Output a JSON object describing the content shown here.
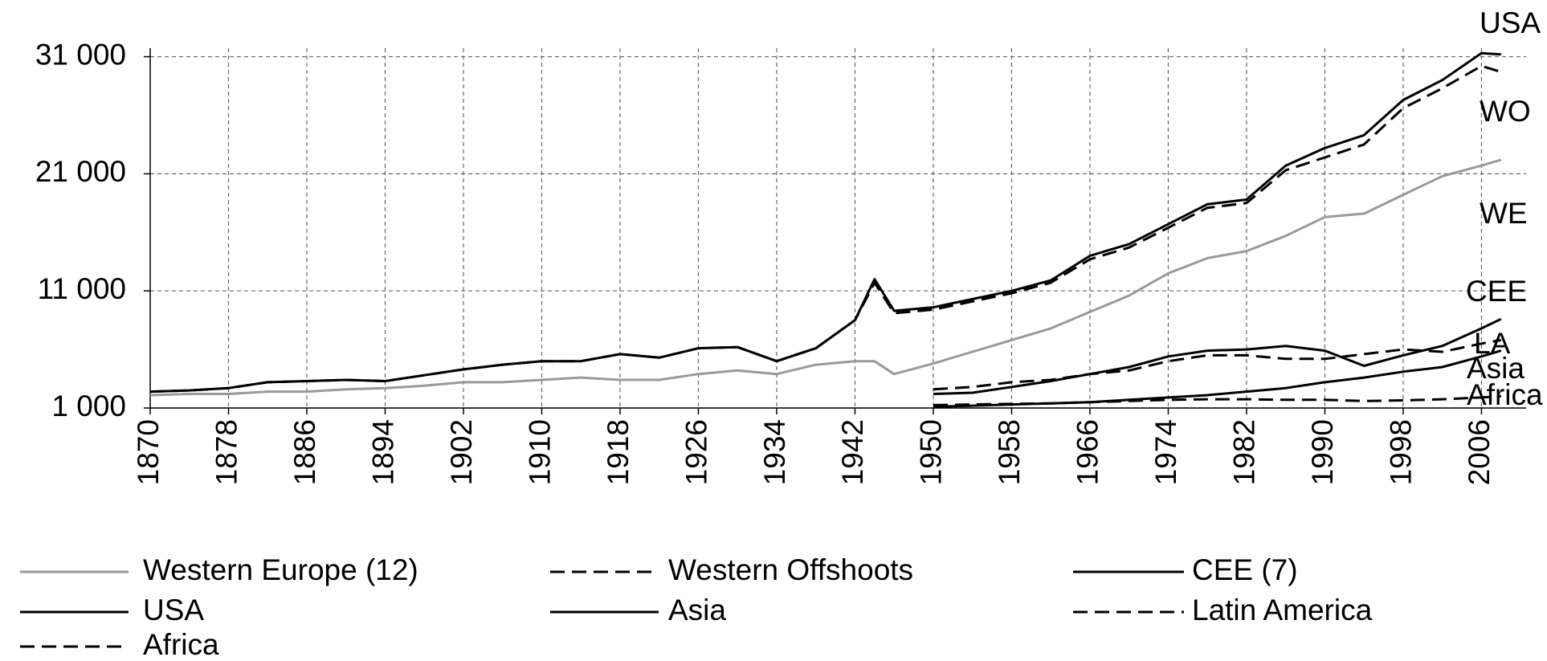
{
  "chart_data": {
    "type": "line",
    "x": [
      1870,
      1874,
      1878,
      1882,
      1886,
      1890,
      1894,
      1898,
      1902,
      1906,
      1910,
      1914,
      1918,
      1922,
      1926,
      1930,
      1934,
      1938,
      1942,
      1944,
      1946,
      1950,
      1954,
      1958,
      1962,
      1966,
      1970,
      1974,
      1978,
      1982,
      1986,
      1990,
      1994,
      1998,
      2002,
      2006,
      2008
    ],
    "series": [
      {
        "name": "Western Europe (12)",
        "color": "#999999",
        "dash": false,
        "values": [
          2100,
          2200,
          2200,
          2400,
          2400,
          2600,
          2700,
          2900,
          3200,
          3200,
          3400,
          3600,
          3400,
          3400,
          3900,
          4200,
          3900,
          4700,
          5000,
          5000,
          3900,
          4800,
          5800,
          6800,
          7800,
          9200,
          10600,
          12500,
          13800,
          14400,
          15700,
          17300,
          17600,
          19200,
          20800,
          21700,
          22200
        ]
      },
      {
        "name": "Western Offshoots",
        "color": "#000000",
        "dash": true,
        "values": [
          2400,
          2500,
          2700,
          3200,
          3300,
          3400,
          3300,
          3800,
          4300,
          4700,
          5000,
          5000,
          5600,
          5300,
          6100,
          6200,
          5000,
          6100,
          8500,
          11700,
          9100,
          9400,
          10100,
          10800,
          11700,
          13700,
          14700,
          16400,
          18100,
          18500,
          21300,
          22400,
          23500,
          26600,
          28300,
          30200,
          29700
        ]
      },
      {
        "name": "CEE (7)",
        "color": "#000000",
        "dash": false,
        "values": [
          null,
          null,
          null,
          null,
          null,
          null,
          null,
          null,
          null,
          null,
          null,
          null,
          null,
          null,
          null,
          null,
          null,
          null,
          null,
          null,
          null,
          2200,
          2300,
          2800,
          3300,
          3900,
          4500,
          5400,
          5900,
          6000,
          6300,
          5900,
          4600,
          5500,
          6300,
          7800,
          8600
        ]
      },
      {
        "name": "USA",
        "color": "#000000",
        "dash": false,
        "values": [
          2400,
          2500,
          2700,
          3200,
          3300,
          3400,
          3300,
          3800,
          4300,
          4700,
          5000,
          5000,
          5600,
          5300,
          6100,
          6200,
          5000,
          6100,
          8500,
          12000,
          9300,
          9600,
          10300,
          11000,
          11900,
          14000,
          15000,
          16700,
          18400,
          18800,
          21700,
          23200,
          24300,
          27300,
          29000,
          31300,
          31200
        ]
      },
      {
        "name": "Asia",
        "color": "#000000",
        "dash": false,
        "values": [
          null,
          null,
          null,
          null,
          null,
          null,
          null,
          null,
          null,
          null,
          null,
          null,
          null,
          null,
          null,
          null,
          null,
          null,
          null,
          null,
          null,
          1100,
          1200,
          1300,
          1400,
          1500,
          1700,
          1900,
          2100,
          2400,
          2700,
          3200,
          3600,
          4100,
          4500,
          5400,
          5900
        ]
      },
      {
        "name": "Latin America",
        "color": "#000000",
        "dash": true,
        "values": [
          null,
          null,
          null,
          null,
          null,
          null,
          null,
          null,
          null,
          null,
          null,
          null,
          null,
          null,
          null,
          null,
          null,
          null,
          null,
          null,
          null,
          2600,
          2800,
          3200,
          3400,
          3900,
          4200,
          5000,
          5500,
          5500,
          5200,
          5200,
          5600,
          6000,
          5800,
          6500,
          6800
        ]
      },
      {
        "name": "Africa",
        "color": "#000000",
        "dash": true,
        "values": [
          null,
          null,
          null,
          null,
          null,
          null,
          null,
          null,
          null,
          null,
          null,
          null,
          null,
          null,
          null,
          null,
          null,
          null,
          null,
          null,
          null,
          1250,
          1300,
          1350,
          1400,
          1500,
          1600,
          1700,
          1750,
          1750,
          1700,
          1700,
          1600,
          1650,
          1750,
          1900,
          2000
        ]
      }
    ],
    "end_labels": [
      "USA",
      "WO",
      "WE",
      "CEE",
      "LA",
      "Asia",
      "Africa"
    ],
    "xlim": [
      1870,
      2009
    ],
    "xticks": [
      1870,
      1878,
      1886,
      1894,
      1902,
      1910,
      1918,
      1926,
      1934,
      1942,
      1950,
      1958,
      1966,
      1974,
      1982,
      1990,
      1998,
      2006
    ],
    "ylim": [
      1000,
      32000
    ],
    "yticks": [
      {
        "value": 1000,
        "label": "1 000"
      },
      {
        "value": 11000,
        "label": "11 000"
      },
      {
        "value": 21000,
        "label": "21 000"
      },
      {
        "value": 31000,
        "label": "31 000"
      }
    ],
    "grid": true
  }
}
